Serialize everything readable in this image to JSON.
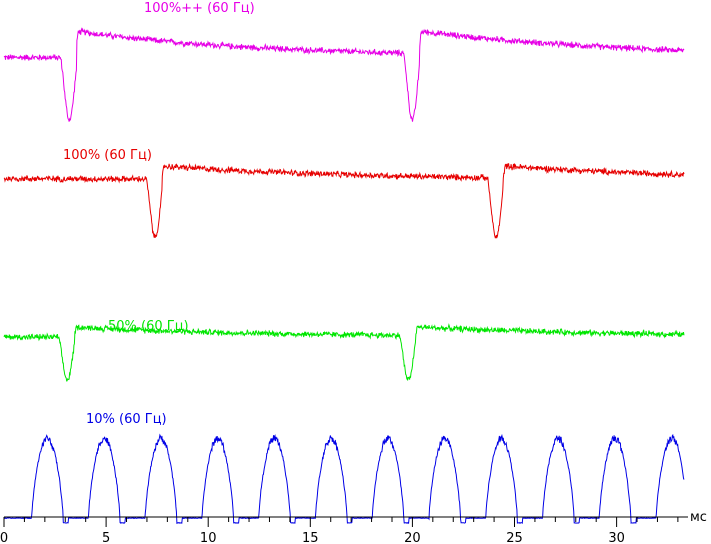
{
  "chart_data": {
    "type": "line",
    "title": "",
    "xlabel": "мс",
    "ylabel": "",
    "xlim": [
      0,
      33.3
    ],
    "x_ticks": [
      0,
      5,
      10,
      15,
      20,
      25,
      30
    ],
    "grid": false,
    "legend": "inline labels above each trace",
    "series": [
      {
        "name": "100%++ (60 Гц)",
        "color": "#e600e6",
        "kind": "dip",
        "baseline_start": 0.62,
        "baseline_end": 0.62,
        "plateau_level": 0.83,
        "dip_times_ms": [
          3.2,
          20.0
        ],
        "dip_level": 0.12,
        "noise": 0.05
      },
      {
        "name": "100% (60 Гц)",
        "color": "#e60000",
        "kind": "dip",
        "baseline_start": 0.68,
        "baseline_end": 0.66,
        "plateau_level": 0.8,
        "dip_times_ms": [
          7.4,
          24.1
        ],
        "dip_level": 0.12,
        "noise": 0.06
      },
      {
        "name": "50% (60 Гц)",
        "color": "#00e600",
        "kind": "dip",
        "baseline_start": 0.63,
        "baseline_end": 0.63,
        "plateau_level": 0.73,
        "dip_times_ms": [
          3.1,
          19.8
        ],
        "dip_level": 0.2,
        "noise": 0.06
      },
      {
        "name": "10% (60 Гц)",
        "color": "#0000e6",
        "kind": "pulse",
        "period_ms": 2.78,
        "first_pulse_start_ms": 1.35,
        "pulse_width_ms": 1.55,
        "peak_level": 0.86,
        "noise": 0.03
      }
    ]
  }
}
